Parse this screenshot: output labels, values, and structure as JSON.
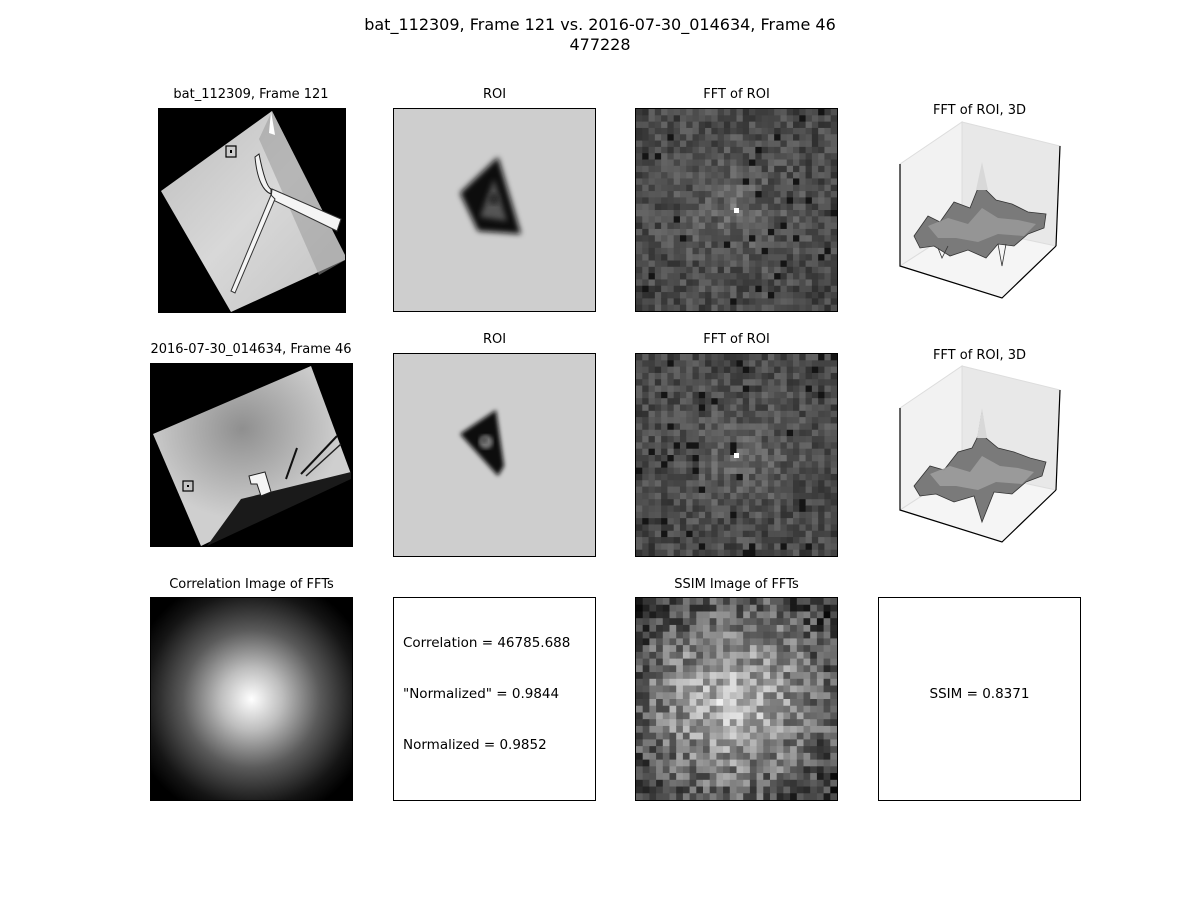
{
  "figure": {
    "title_line1": "bat_112309, Frame 121 vs. 2016-07-30_014634, Frame 46",
    "title_line2": "477228"
  },
  "row1": {
    "source_title": "bat_112309, Frame 121",
    "roi_title": "ROI",
    "fft_title": "FFT of ROI",
    "fft3d_title": "FFT of ROI, 3D"
  },
  "row2": {
    "source_title": "2016-07-30_014634, Frame 46",
    "roi_title": "ROI",
    "fft_title": "FFT of ROI",
    "fft3d_title": "FFT of ROI, 3D"
  },
  "row3": {
    "corr_title": "Correlation Image of FFTs",
    "ssim_title": "SSIM Image of FFTs"
  },
  "chart_data": {
    "type": "heatmap",
    "metrics": {
      "correlation": "Correlation = 46785.688",
      "quoted_normalized": "\"Normalized\" = 0.9844",
      "normalized": "Normalized = 0.9852",
      "ssim": "SSIM = 0.8371"
    },
    "values": {
      "correlation": 46785.688,
      "quoted_normalized": 0.9844,
      "normalized": 0.9852,
      "ssim": 0.8371
    },
    "colormap": "gray",
    "grid": false
  }
}
